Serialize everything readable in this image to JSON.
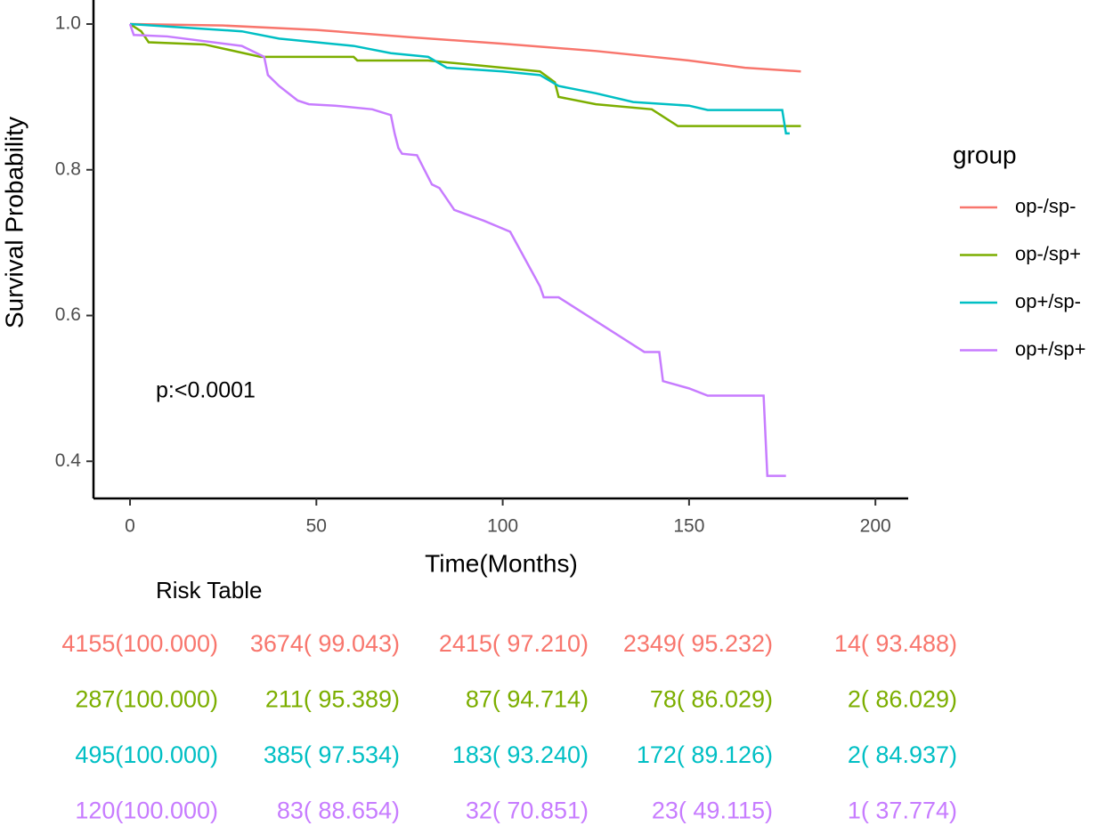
{
  "chart_data": {
    "type": "line",
    "x_label": "Time(Months)",
    "y_label": "Survival Probability",
    "annotation": "p:<0.0001",
    "legend_title": "group",
    "legend_position": "right",
    "xlim": [
      -9.8,
      208.8
    ],
    "ylim": [
      0.349,
      1.033
    ],
    "xticks": [
      0,
      50,
      100,
      150,
      200
    ],
    "yticks": [
      0.4,
      0.6,
      0.8,
      {
        "value": 1,
        "label": "1.0"
      }
    ],
    "series": [
      {
        "name": "op-/sp-",
        "color": "#F8766D",
        "x": [
          0,
          25,
          50,
          75,
          100,
          125,
          150,
          165,
          180
        ],
        "values": [
          1.0,
          0.998,
          0.992,
          0.982,
          0.973,
          0.963,
          0.95,
          0.94,
          0.935
        ]
      },
      {
        "name": "op-/sp+",
        "color": "#7CAE00",
        "x": [
          0,
          3,
          5,
          20,
          35,
          60,
          61,
          80,
          90,
          110,
          114,
          115,
          125,
          140,
          147,
          180
        ],
        "values": [
          1.0,
          0.99,
          0.975,
          0.972,
          0.955,
          0.955,
          0.95,
          0.95,
          0.945,
          0.935,
          0.92,
          0.9,
          0.89,
          0.883,
          0.86,
          0.86
        ]
      },
      {
        "name": "op+/sp-",
        "color": "#00BFC4",
        "x": [
          0,
          15,
          30,
          40,
          50,
          60,
          70,
          80,
          85,
          100,
          110,
          115,
          125,
          135,
          150,
          155,
          175,
          176,
          177
        ],
        "values": [
          1.0,
          0.995,
          0.99,
          0.98,
          0.975,
          0.97,
          0.96,
          0.955,
          0.94,
          0.935,
          0.93,
          0.915,
          0.905,
          0.893,
          0.888,
          0.882,
          0.882,
          0.85,
          0.85
        ]
      },
      {
        "name": "op+/sp+",
        "color": "#C77CFF",
        "x": [
          0,
          1,
          10,
          30,
          36,
          37,
          40,
          45,
          48,
          55,
          65,
          70,
          71,
          72,
          73,
          77,
          79,
          81,
          83,
          87,
          95,
          102,
          110,
          111,
          115,
          138,
          142,
          143,
          150,
          155,
          170,
          171,
          176
        ],
        "values": [
          1.0,
          0.985,
          0.983,
          0.97,
          0.955,
          0.93,
          0.915,
          0.895,
          0.89,
          0.888,
          0.883,
          0.875,
          0.85,
          0.83,
          0.822,
          0.82,
          0.8,
          0.78,
          0.775,
          0.745,
          0.73,
          0.715,
          0.64,
          0.625,
          0.625,
          0.55,
          0.55,
          0.51,
          0.5,
          0.49,
          0.49,
          0.38,
          0.38
        ]
      }
    ]
  },
  "risk_table": {
    "title": "Risk Table",
    "rows": [
      {
        "color": "#F8766D",
        "cells": [
          "4155(100.000)",
          "3674( 99.043)",
          "2415( 97.210)",
          "2349( 95.232)",
          "14( 93.488)"
        ]
      },
      {
        "color": "#7CAE00",
        "cells": [
          "287(100.000)",
          "211( 95.389)",
          "87( 94.714)",
          "78( 86.029)",
          "2( 86.029)"
        ]
      },
      {
        "color": "#00BFC4",
        "cells": [
          "495(100.000)",
          "385( 97.534)",
          "183( 93.240)",
          "172( 89.126)",
          "2( 84.937)"
        ]
      },
      {
        "color": "#C77CFF",
        "cells": [
          "120(100.000)",
          "83( 88.654)",
          "32( 70.851)",
          "23( 49.115)",
          "1( 37.774)"
        ]
      }
    ]
  }
}
